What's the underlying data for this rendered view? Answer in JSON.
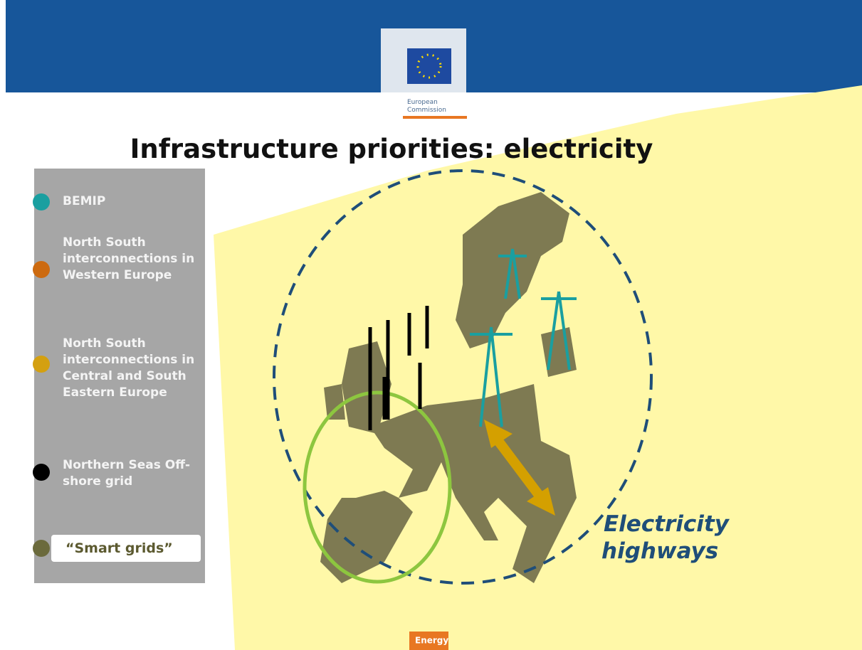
{
  "header": {
    "logo_line1": "European",
    "logo_line2": "Commission"
  },
  "title": "Infrastructure priorities: electricity",
  "legend": {
    "items": [
      "BEMIP",
      "North South interconnections in Western Europe",
      "North South interconnections in Central and South Eastern Europe",
      "Northern Seas Off-shore grid",
      "“Smart grids”"
    ]
  },
  "annotation": {
    "line1": "Electricity",
    "line2": "highways"
  },
  "footer": "Energy"
}
